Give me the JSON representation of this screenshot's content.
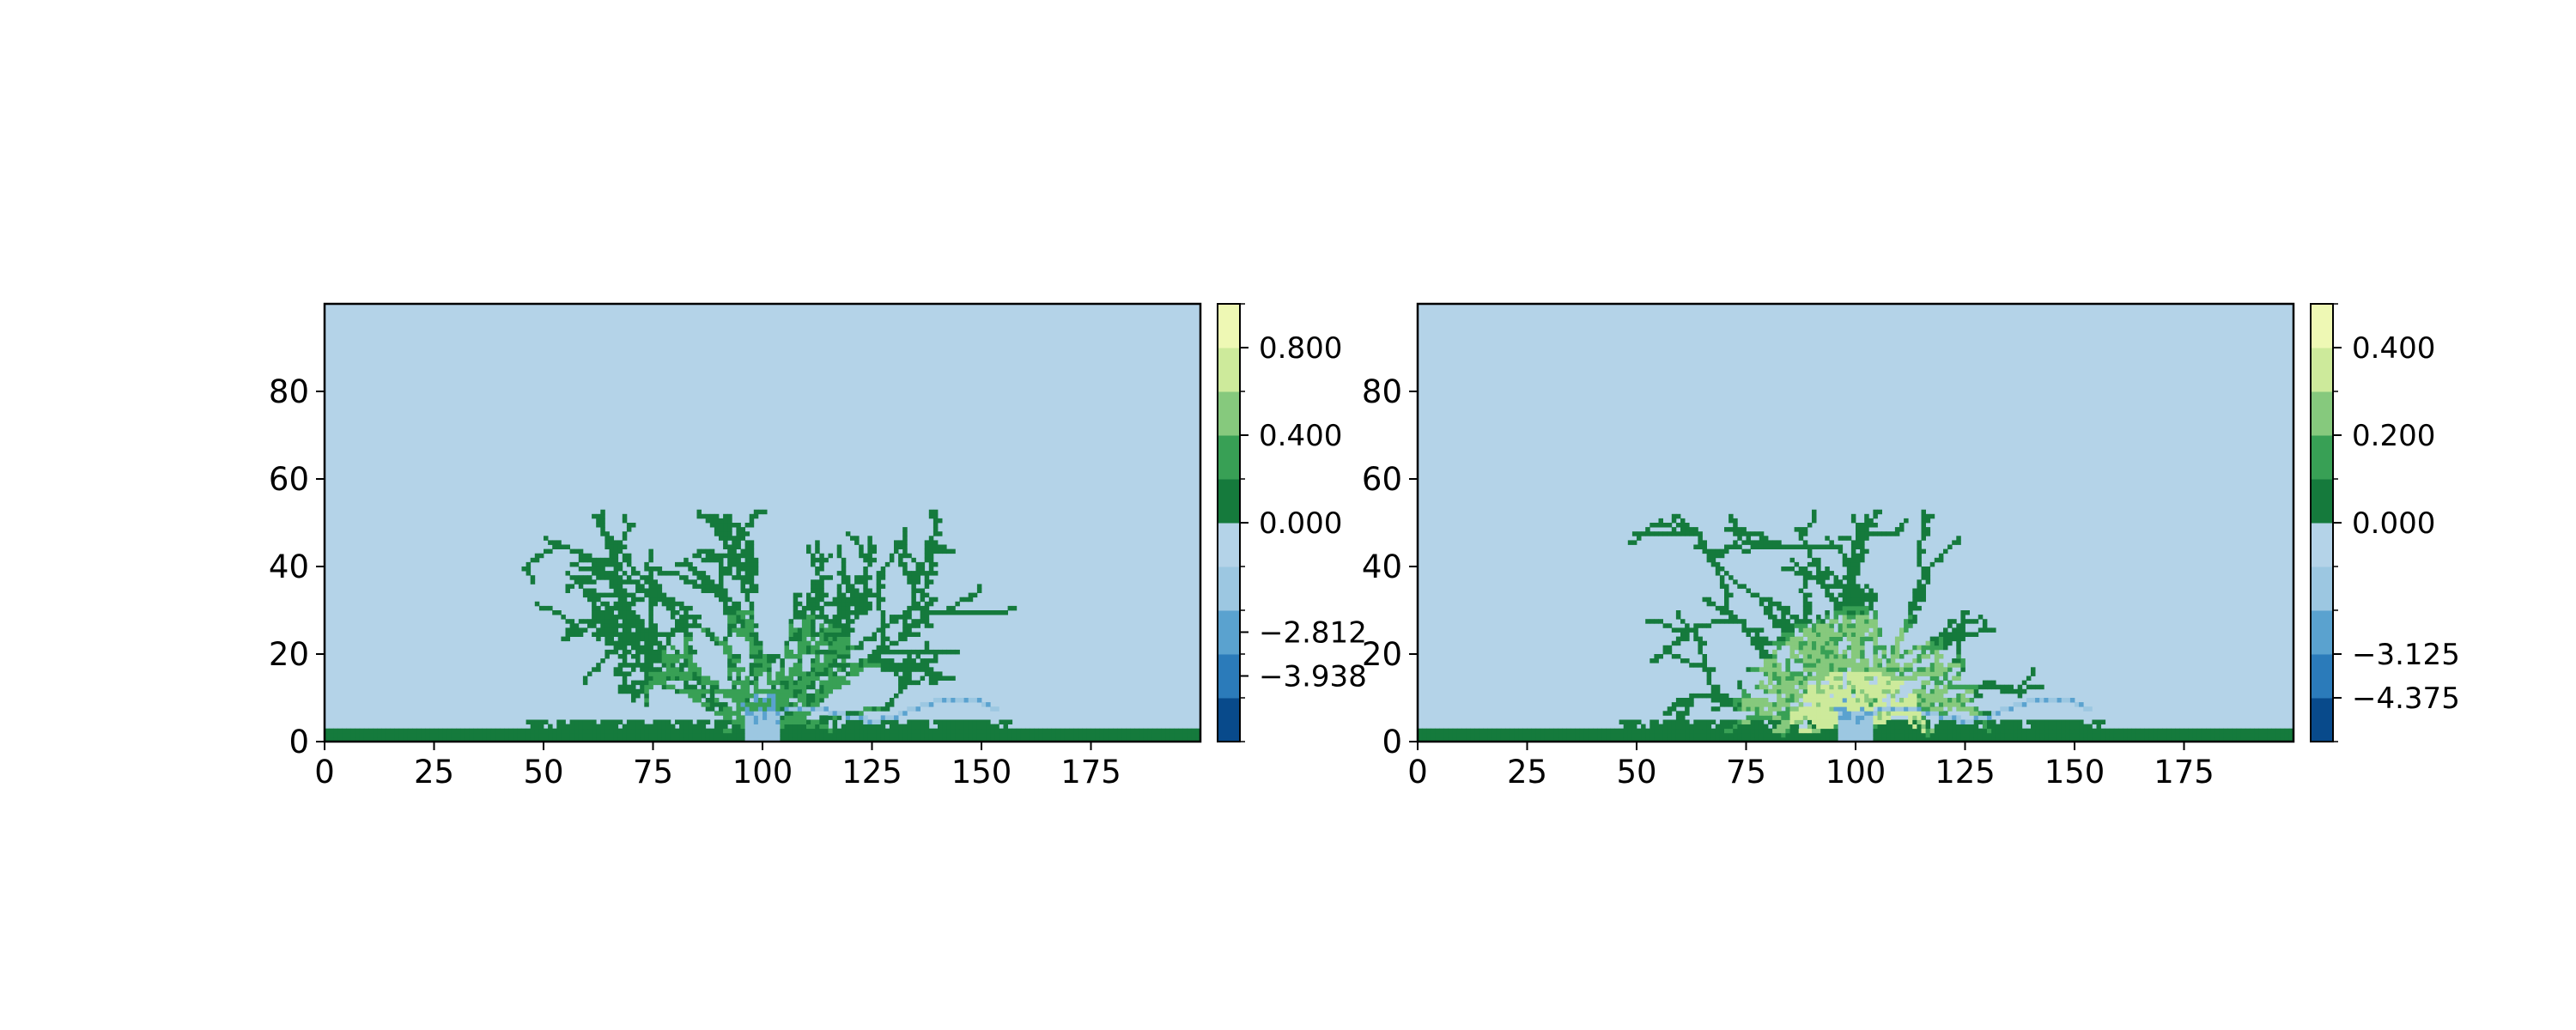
{
  "chart_data": [
    {
      "type": "heatmap",
      "title": "",
      "xlabel": "",
      "ylabel": "",
      "xlim": [
        0,
        200
      ],
      "ylim": [
        0,
        100
      ],
      "x_ticks": [
        0,
        25,
        50,
        75,
        100,
        125,
        150,
        175
      ],
      "y_ticks": [
        0,
        20,
        40,
        60,
        80
      ],
      "grid": false,
      "colormap": "GnBu_r",
      "colors": {
        "background": "#b4d3e8",
        "dark_green": "#157a3c",
        "mid_green": "#38a055",
        "light_green": "#86c97d",
        "pale_green": "#cdea9b",
        "light_blue": "#9cc7e1",
        "mid_blue": "#5aa2cf",
        "blue": "#2b7bba",
        "dark_blue": "#084a8b"
      },
      "pattern": "branching dendritic structure centred at x=100, spanning x 45-155 and y 0-51, on a base band y 0-3",
      "colorbar": {
        "boundaries": [
          -5.0,
          -4.5,
          -3.375,
          -2.25,
          -1.125,
          0.0,
          0.2,
          0.4,
          0.6,
          0.8,
          1.0
        ],
        "colors": [
          "#084a8b",
          "#2b7bba",
          "#5aa2cf",
          "#9cc7e1",
          "#b4d3e8",
          "#157a3c",
          "#38a055",
          "#86c97d",
          "#cdea9b",
          "#eef8b4"
        ],
        "tick_values": [
          -3.938,
          -2.812,
          0.0,
          0.4,
          0.8
        ],
        "tick_labels": [
          "−3.938",
          "−2.812",
          "0.000",
          "0.400",
          "0.800"
        ]
      }
    },
    {
      "type": "heatmap",
      "title": "",
      "xlabel": "",
      "ylabel": "",
      "xlim": [
        0,
        200
      ],
      "ylim": [
        0,
        100
      ],
      "x_ticks": [
        0,
        25,
        50,
        75,
        100,
        125,
        150,
        175
      ],
      "y_ticks": [
        0,
        20,
        40,
        60,
        80
      ],
      "grid": false,
      "colormap": "GnBu_r",
      "colors": {
        "background": "#b4d3e8",
        "dark_green": "#157a3c",
        "mid_green": "#38a055",
        "light_green": "#86c97d",
        "pale_green": "#cdea9b",
        "light_blue": "#9cc7e1",
        "mid_blue": "#5aa2cf",
        "blue": "#2b7bba",
        "dark_blue": "#084a8b"
      },
      "pattern": "branching dendritic structure centred at x=100 with pale-green core, spanning x 45-155 and y 0-51, on a base band y 0-3",
      "colorbar": {
        "boundaries": [
          -5.0,
          -4.375,
          -3.125,
          -1.875,
          -0.625,
          0.0,
          0.1,
          0.2,
          0.3,
          0.4,
          0.5
        ],
        "colors": [
          "#084a8b",
          "#2b7bba",
          "#5aa2cf",
          "#9cc7e1",
          "#b4d3e8",
          "#157a3c",
          "#38a055",
          "#86c97d",
          "#cdea9b",
          "#eef8b4"
        ],
        "tick_values": [
          -4.375,
          -3.125,
          0.0,
          0.2,
          0.4
        ],
        "tick_labels": [
          "−4.375",
          "−3.125",
          "0.000",
          "0.200",
          "0.400"
        ]
      }
    }
  ]
}
